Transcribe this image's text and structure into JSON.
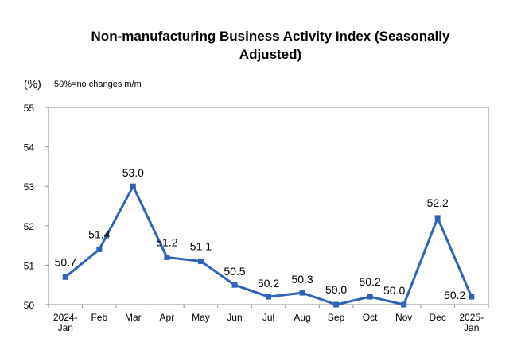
{
  "chart_data": {
    "type": "line",
    "title": "Non-manufacturing Business Activity Index (Seasonally Adjusted)",
    "title_lines": [
      "Non-manufacturing Business Activity Index (Seasonally",
      "Adjusted)"
    ],
    "ylabel": "(%)",
    "annotation": "50%=no changes m/m",
    "categories": [
      [
        "2024-",
        "Jan"
      ],
      [
        "Feb"
      ],
      [
        "Mar"
      ],
      [
        "Apr"
      ],
      [
        "May"
      ],
      [
        "Jun"
      ],
      [
        "Jul"
      ],
      [
        "Aug"
      ],
      [
        "Sep"
      ],
      [
        "Oct"
      ],
      [
        "Nov"
      ],
      [
        "Dec"
      ],
      [
        "2025-",
        "Jan"
      ]
    ],
    "series": [
      {
        "values": [
          50.7,
          51.4,
          53.0,
          51.2,
          51.1,
          50.5,
          50.2,
          50.3,
          50.0,
          50.2,
          50.0,
          52.2,
          50.2
        ]
      }
    ],
    "data_labels": [
      "50.7",
      "51.4",
      "53.0",
      "51.2",
      "51.1",
      "50.5",
      "50.2",
      "50.3",
      "50.0",
      "50.2",
      "50.0",
      "52.2",
      "50.2"
    ],
    "ylim": [
      50,
      55
    ],
    "yticks": [
      50,
      51,
      52,
      53,
      54,
      55
    ],
    "grid": false,
    "legend": "none",
    "line_color": "#2E63B8"
  }
}
